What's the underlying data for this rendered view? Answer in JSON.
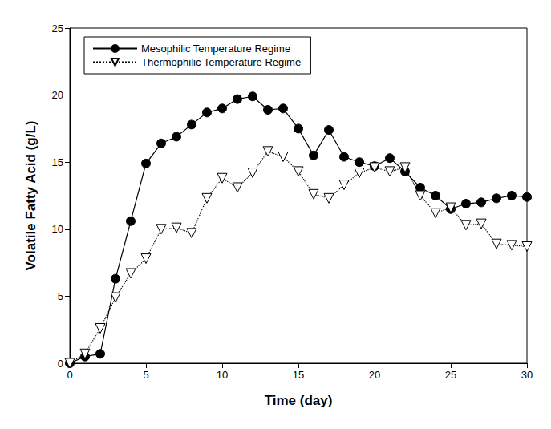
{
  "chart_data": {
    "type": "line",
    "x_label": "Time (day)",
    "y_label": "Volatile Fatty Acid (g/L)",
    "x": [
      0,
      1,
      2,
      3,
      4,
      5,
      6,
      7,
      8,
      9,
      10,
      11,
      12,
      13,
      14,
      15,
      16,
      17,
      18,
      19,
      20,
      21,
      22,
      23,
      24,
      25,
      26,
      27,
      28,
      29,
      30
    ],
    "series": [
      {
        "name": "Mesophilic Temperature Regime",
        "color": "#000000",
        "marker": "circle",
        "line_style": "solid",
        "values": [
          0,
          0.5,
          0.7,
          6.3,
          10.6,
          14.9,
          16.4,
          16.9,
          17.8,
          18.7,
          19.0,
          19.7,
          19.9,
          18.9,
          19.0,
          17.5,
          15.5,
          17.4,
          15.4,
          15.0,
          14.7,
          15.3,
          14.3,
          13.1,
          12.5,
          11.5,
          11.9,
          12.0,
          12.3,
          12.5,
          12.4
        ]
      },
      {
        "name": "Thermophilic Temperature Regime",
        "color": "#000000",
        "marker": "triangle_down_open",
        "line_style": "dotted",
        "values": [
          0,
          0.7,
          2.6,
          4.9,
          6.7,
          7.8,
          10.0,
          10.1,
          9.7,
          12.3,
          13.8,
          13.1,
          14.2,
          15.8,
          15.4,
          14.3,
          12.6,
          12.3,
          13.3,
          14.2,
          14.6,
          14.3,
          14.6,
          12.5,
          11.2,
          11.6,
          10.3,
          10.4,
          8.9,
          8.8,
          8.7
        ]
      }
    ],
    "xlim": [
      0,
      30
    ],
    "xticks": [
      0,
      5,
      10,
      15,
      20,
      25,
      30
    ],
    "ylim": [
      0,
      25
    ],
    "yticks": [
      0,
      5,
      10,
      15,
      20,
      25
    ],
    "grid": false,
    "legend": "upper left"
  }
}
